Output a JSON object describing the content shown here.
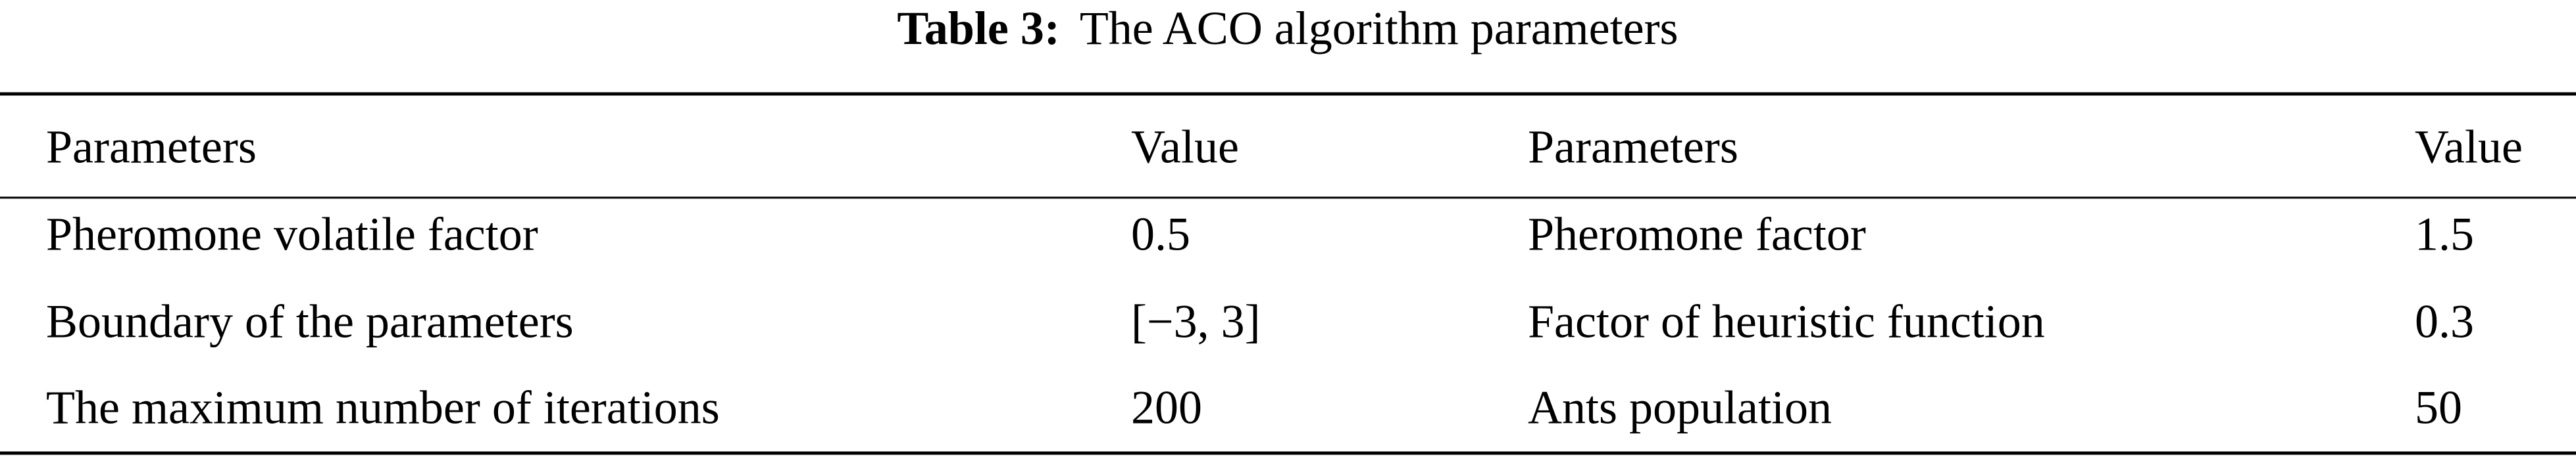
{
  "table": {
    "title": {
      "label": "Table 3:",
      "text": "The ACO algorithm parameters"
    },
    "header": [
      "Parameters",
      "Value",
      "Parameters",
      "Value"
    ],
    "rows": [
      [
        "Pheromone volatile factor",
        "0.5",
        "Pheromone factor",
        "1.5"
      ],
      [
        "Boundary of the parameters",
        "[−3, 3]",
        "Factor of heuristic function",
        "0.3"
      ],
      [
        "The maximum number of iterations",
        "200",
        "Ants population",
        "50"
      ]
    ]
  }
}
